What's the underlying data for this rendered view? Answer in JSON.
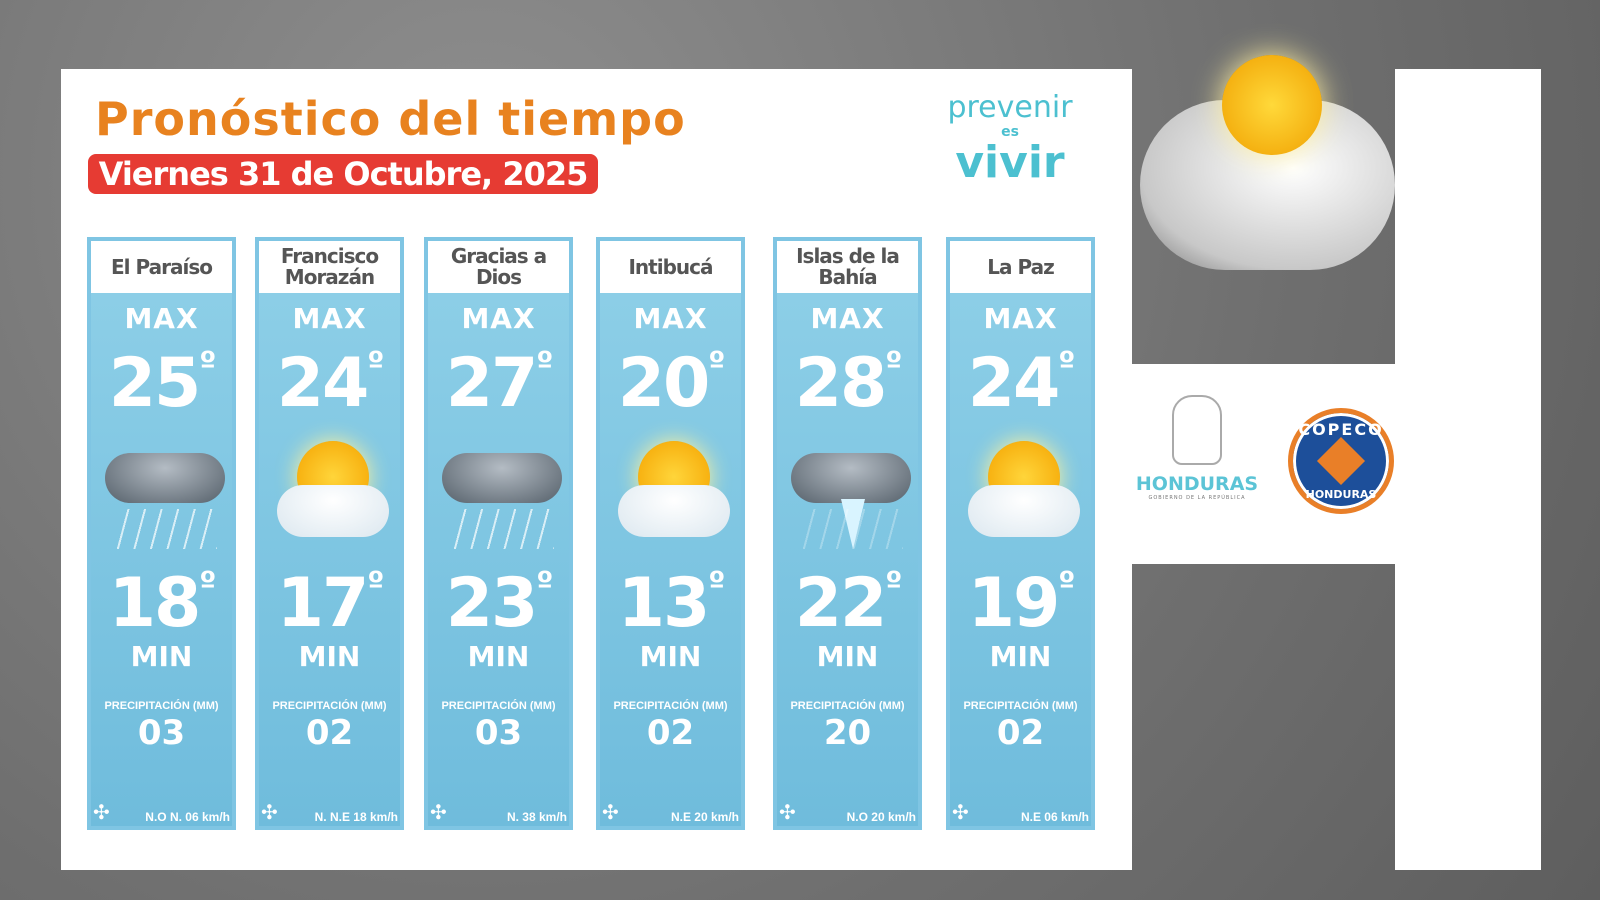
{
  "header": {
    "title": "Pronóstico del tiempo",
    "date": "Viernes 31 de Octubre, 2025"
  },
  "slogan": {
    "line1": "prevenir",
    "line2": "es",
    "line3": "vivir"
  },
  "labels": {
    "max": "MAX",
    "min": "MIN",
    "precip": "PRECIPITACIÓN (MM)",
    "degree": "º"
  },
  "cards": [
    {
      "name": "El Paraíso",
      "max": "25",
      "min": "18",
      "precip": "03",
      "wind": "N.O N. 06 km/h",
      "icon": "rain-cloud-icon"
    },
    {
      "name": "Francisco Morazán",
      "max": "24",
      "min": "17",
      "precip": "02",
      "wind": "N. N.E 18 km/h",
      "icon": "partly-cloudy-icon"
    },
    {
      "name": "Gracias a Dios",
      "max": "27",
      "min": "23",
      "precip": "03",
      "wind": "N. 38 km/h",
      "icon": "rain-cloud-icon"
    },
    {
      "name": "Intibucá",
      "max": "20",
      "min": "13",
      "precip": "02",
      "wind": "N.E 20 km/h",
      "icon": "partly-cloudy-icon"
    },
    {
      "name": "Islas de la Bahía",
      "max": "28",
      "min": "22",
      "precip": "20",
      "wind": "N.O 20 km/h",
      "icon": "thunderstorm-icon"
    },
    {
      "name": "La Paz",
      "max": "24",
      "min": "19",
      "precip": "02",
      "wind": "N.E 06 km/h",
      "icon": "partly-cloudy-icon"
    }
  ],
  "logos": {
    "honduras": "HONDURAS",
    "honduras_sub": "GOBIERNO DE LA REPÚBLICA",
    "copeco_top": "COPECO",
    "copeco_bottom": "HONDURAS"
  },
  "colors": {
    "title": "#e8821f",
    "date_bg": "#e63b33",
    "card": "#7fc5e3",
    "slogan": "#4cc0d0"
  }
}
